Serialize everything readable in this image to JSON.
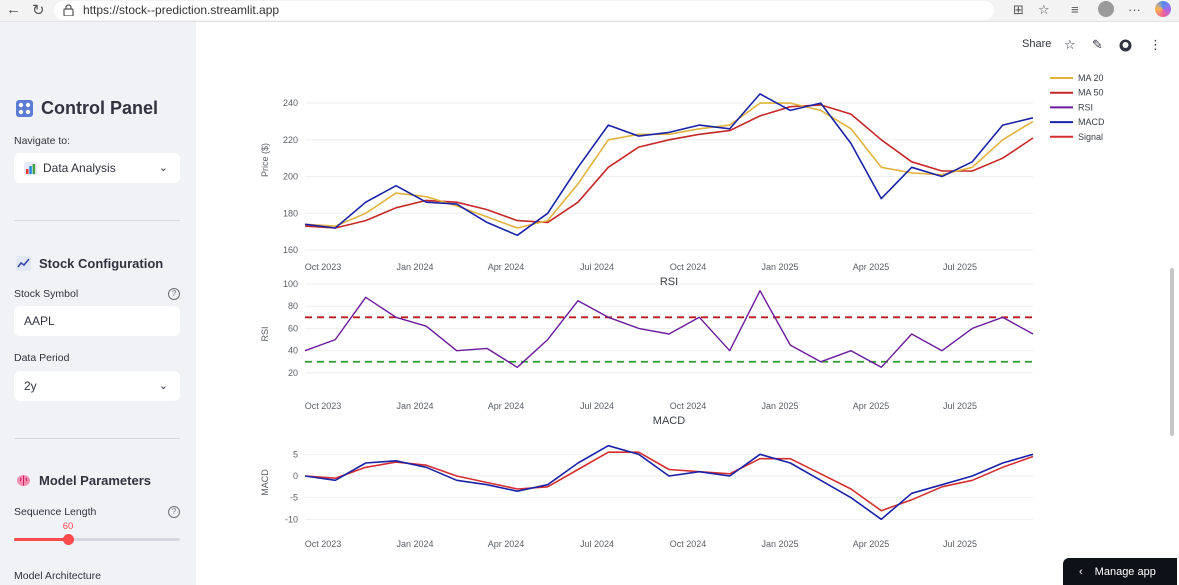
{
  "browser": {
    "url": "https://stock--prediction.streamlit.app",
    "back_icon": "back-arrow-icon",
    "reload_icon": "reload-icon"
  },
  "sidebar": {
    "title": "Control Panel",
    "navigate_label": "Navigate to:",
    "navigate_value": "Data Analysis",
    "stock_config_header": "Stock Configuration",
    "stock_symbol_label": "Stock Symbol",
    "stock_symbol_value": "AAPL",
    "data_period_label": "Data Period",
    "data_period_value": "2y",
    "model_params_header": "Model Parameters",
    "sequence_length_label": "Sequence Length",
    "sequence_length_value": "60",
    "sequence_length_fraction": 0.33,
    "model_architecture_label": "Model Architecture"
  },
  "toolbar": {
    "share_label": "Share"
  },
  "manage_app_label": "Manage app",
  "colors": {
    "accent": "#ff4b4b",
    "ma20": "#e0b33c",
    "ma50": "#c62828",
    "rsi": "#6a1b9a",
    "macd": "#1a23a8",
    "signal": "#d32f2f",
    "overbought": "#b71c1c",
    "oversold": "#2e9b2e"
  },
  "chart_data": [
    {
      "type": "line",
      "title": "",
      "ylabel": "Price ($)",
      "ylim": [
        160,
        258
      ],
      "yticks": [
        160,
        180,
        200,
        220,
        240
      ],
      "xticks": [
        "Oct 2023",
        "Jan 2024",
        "Apr 2024",
        "Jul 2024",
        "Oct 2024",
        "Jan 2025",
        "Apr 2025",
        "Jul 2025"
      ],
      "x": [
        "Sep 2023",
        "Oct 2023",
        "Nov 2023",
        "Dec 2023",
        "Jan 2024",
        "Feb 2024",
        "Mar 2024",
        "Apr 2024",
        "May 2024",
        "Jun 2024",
        "Jul 2024",
        "Aug 2024",
        "Sep 2024",
        "Oct 2024",
        "Nov 2024",
        "Dec 2024",
        "Jan 2025",
        "Feb 2025",
        "Mar 2025",
        "Apr 2025",
        "May 2025",
        "Jun 2025",
        "Jul 2025",
        "Aug 2025",
        "Sep 2025"
      ],
      "legend_position": "top-right",
      "series": [
        {
          "name": "MACD",
          "values": [
            174,
            172,
            186,
            195,
            186,
            185,
            175,
            168,
            180,
            205,
            228,
            222,
            224,
            228,
            226,
            245,
            236,
            240,
            218,
            188,
            205,
            200,
            208,
            228,
            232
          ]
        },
        {
          "name": "MA 20",
          "values": [
            174,
            173,
            180,
            191,
            189,
            184,
            178,
            172,
            176,
            196,
            220,
            223,
            223,
            226,
            228,
            240,
            240,
            236,
            226,
            205,
            202,
            201,
            205,
            220,
            230
          ]
        },
        {
          "name": "MA 50",
          "values": [
            173,
            172,
            176,
            183,
            187,
            186,
            182,
            176,
            175,
            186,
            205,
            216,
            220,
            223,
            225,
            233,
            238,
            239,
            234,
            220,
            208,
            203,
            203,
            210,
            221
          ]
        }
      ]
    },
    {
      "type": "line",
      "title": "RSI",
      "ylabel": "RSI",
      "ylim": [
        10,
        100
      ],
      "yticks": [
        20,
        40,
        60,
        80,
        100
      ],
      "xticks": [
        "Oct 2023",
        "Jan 2024",
        "Apr 2024",
        "Jul 2024",
        "Oct 2024",
        "Jan 2025",
        "Apr 2025",
        "Jul 2025"
      ],
      "x": [
        "Sep 2023",
        "Oct 2023",
        "Nov 2023",
        "Dec 2023",
        "Jan 2024",
        "Feb 2024",
        "Mar 2024",
        "Apr 2024",
        "May 2024",
        "Jun 2024",
        "Jul 2024",
        "Aug 2024",
        "Sep 2024",
        "Oct 2024",
        "Nov 2024",
        "Dec 2024",
        "Jan 2025",
        "Feb 2025",
        "Mar 2025",
        "Apr 2025",
        "May 2025",
        "Jun 2025",
        "Jul 2025",
        "Aug 2025",
        "Sep 2025"
      ],
      "thresholds": [
        70,
        30
      ],
      "series": [
        {
          "name": "RSI",
          "values": [
            40,
            50,
            88,
            70,
            62,
            40,
            42,
            25,
            50,
            85,
            70,
            60,
            55,
            70,
            40,
            94,
            45,
            30,
            40,
            25,
            55,
            40,
            60,
            70,
            55
          ]
        }
      ]
    },
    {
      "type": "line",
      "title": "MACD",
      "ylabel": "MACD",
      "ylim": [
        -12,
        9
      ],
      "yticks": [
        -10,
        -5,
        0,
        5
      ],
      "xticks": [
        "Oct 2023",
        "Jan 2024",
        "Apr 2024",
        "Jul 2024",
        "Oct 2024",
        "Jan 2025",
        "Apr 2025",
        "Jul 2025"
      ],
      "x": [
        "Sep 2023",
        "Oct 2023",
        "Nov 2023",
        "Dec 2023",
        "Jan 2024",
        "Feb 2024",
        "Mar 2024",
        "Apr 2024",
        "May 2024",
        "Jun 2024",
        "Jul 2024",
        "Aug 2024",
        "Sep 2024",
        "Oct 2024",
        "Nov 2024",
        "Dec 2024",
        "Jan 2025",
        "Feb 2025",
        "Mar 2025",
        "Apr 2025",
        "May 2025",
        "Jun 2025",
        "Jul 2025",
        "Aug 2025",
        "Sep 2025"
      ],
      "series": [
        {
          "name": "MACD",
          "values": [
            0,
            -1,
            3,
            3.5,
            2,
            -1,
            -2,
            -3.5,
            -2,
            3,
            7,
            5,
            0,
            1,
            0,
            5,
            3,
            -1,
            -5,
            -10,
            -4,
            -2,
            0,
            3,
            5
          ]
        },
        {
          "name": "Signal",
          "values": [
            0,
            -0.5,
            2,
            3.2,
            2.5,
            0,
            -1.5,
            -3,
            -2.5,
            1.5,
            5.5,
            5.5,
            1.5,
            1,
            0.5,
            4,
            4,
            0.5,
            -3,
            -8,
            -5.5,
            -2.5,
            -1,
            2,
            4.5
          ]
        }
      ]
    }
  ],
  "legend": [
    "MA 20",
    "MA 50",
    "RSI",
    "MACD",
    "Signal"
  ]
}
